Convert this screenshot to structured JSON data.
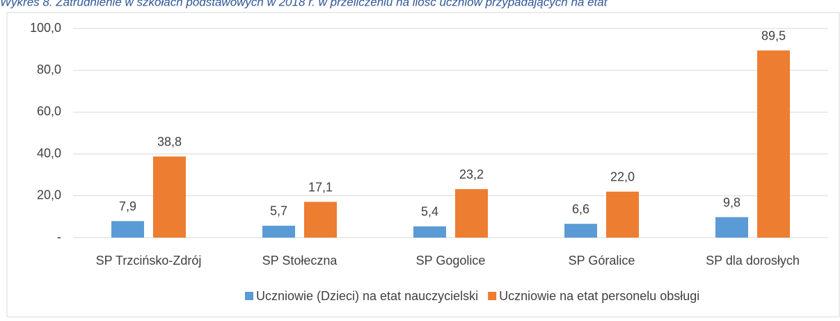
{
  "chart_data": {
    "type": "bar",
    "title": "Wykres 8. Zatrudnienie w szkołach podstawowych w 2018 r. w przeliczeniu na ilość uczniów przypadających na etat",
    "categories": [
      "SP Trzcińsko-Zdrój",
      "SP Stołeczna",
      "SP Gogolice",
      "SP Góralice",
      "SP dla dorosłych"
    ],
    "series": [
      {
        "name": "Uczniowie (Dzieci) na etat nauczycielski",
        "color": "#5b9bd5",
        "values": [
          7.9,
          5.7,
          5.4,
          6.6,
          9.8
        ],
        "value_labels": [
          "7,9",
          "5,7",
          "5,4",
          "6,6",
          "9,8"
        ]
      },
      {
        "name": "Uczniowie na etat personelu obsługi",
        "color": "#ed7d31",
        "values": [
          38.8,
          17.1,
          23.2,
          22.0,
          89.5
        ],
        "value_labels": [
          "38,8",
          "17,1",
          "23,2",
          "22,0",
          "89,5"
        ]
      }
    ],
    "ylim": [
      0,
      100
    ],
    "yticks": [
      {
        "value": 0,
        "label": "-"
      },
      {
        "value": 20,
        "label": "20,0"
      },
      {
        "value": 40,
        "label": "40,0"
      },
      {
        "value": 60,
        "label": "60,0"
      },
      {
        "value": 80,
        "label": "80,0"
      },
      {
        "value": 100,
        "label": "100,0"
      }
    ],
    "grid": true,
    "legend": "bottom"
  }
}
